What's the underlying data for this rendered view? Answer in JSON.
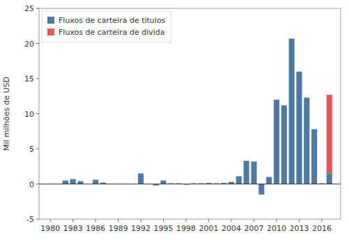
{
  "chart_data": {
    "type": "bar",
    "stacked": true,
    "x": [
      1980,
      1981,
      1982,
      1983,
      1984,
      1985,
      1986,
      1987,
      1988,
      1989,
      1990,
      1991,
      1992,
      1993,
      1994,
      1995,
      1996,
      1997,
      1998,
      1999,
      2000,
      2001,
      2002,
      2003,
      2004,
      2005,
      2006,
      2007,
      2008,
      2009,
      2010,
      2011,
      2012,
      2013,
      2014,
      2015,
      2016,
      2017
    ],
    "series": [
      {
        "name": "Fluxos de carteira de titulos",
        "color": "#4e79a7",
        "values": [
          0.0,
          0.05,
          0.5,
          0.7,
          0.4,
          0.05,
          0.6,
          0.2,
          0.05,
          0.05,
          0.05,
          0.05,
          1.5,
          0.05,
          -0.2,
          0.5,
          0.1,
          0.1,
          -0.1,
          0.1,
          0.1,
          0.15,
          0.1,
          0.15,
          0.3,
          1.1,
          3.3,
          3.2,
          -1.5,
          1.0,
          12.0,
          11.2,
          20.7,
          16.0,
          12.3,
          7.8,
          0.1,
          1.5
        ]
      },
      {
        "name": "Fluxos de carteira de divida",
        "color": "#e15759",
        "values": [
          0.0,
          0.0,
          0.0,
          0.0,
          0.0,
          0.0,
          0.0,
          0.0,
          0.0,
          0.0,
          0.0,
          0.0,
          0.0,
          0.0,
          0.0,
          0.0,
          0.0,
          0.0,
          0.0,
          0.0,
          0.0,
          0.0,
          0.0,
          0.0,
          0.0,
          0.0,
          0.0,
          0.0,
          0.0,
          0.0,
          0.0,
          0.0,
          0.0,
          0.0,
          0.0,
          0.0,
          0.0,
          11.2
        ]
      }
    ],
    "ylabel": "Mil milhões de USD",
    "xlim": [
      1978.5,
      2018.5
    ],
    "xticks": [
      1980,
      1983,
      1986,
      1989,
      1992,
      1995,
      1998,
      2001,
      2004,
      2007,
      2010,
      2013,
      2016
    ],
    "ylim": [
      -5,
      25
    ],
    "yticks": [
      -5,
      0,
      5,
      10,
      15,
      20,
      25
    ],
    "grid": false,
    "legend": "upper left"
  }
}
